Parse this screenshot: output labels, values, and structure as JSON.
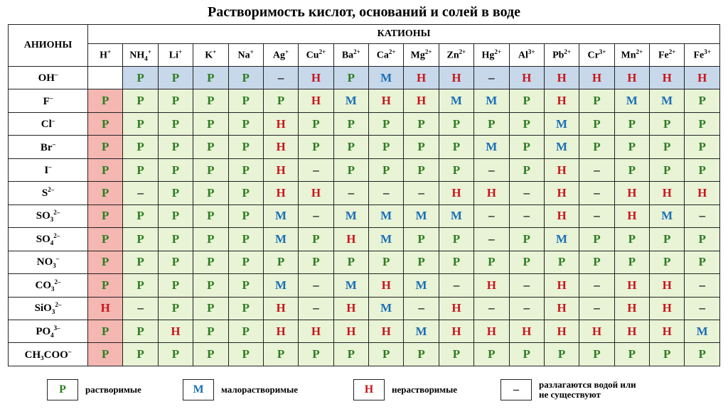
{
  "title": "Растворимость кислот, оснований и солей в воде",
  "header": {
    "anions_label": "АНИОНЫ",
    "cations_label": "КАТИОНЫ"
  },
  "cations": [
    {
      "base": "H",
      "sup": "+"
    },
    {
      "base": "NH",
      "sub": "4",
      "sup": "+"
    },
    {
      "base": "Li",
      "sup": "+"
    },
    {
      "base": "K",
      "sup": "+"
    },
    {
      "base": "Na",
      "sup": "+"
    },
    {
      "base": "Ag",
      "sup": "+"
    },
    {
      "base": "Cu",
      "sup": "2+"
    },
    {
      "base": "Ba",
      "sup": "2+"
    },
    {
      "base": "Ca",
      "sup": "2+"
    },
    {
      "base": "Mg",
      "sup": "2+"
    },
    {
      "base": "Zn",
      "sup": "2+"
    },
    {
      "base": "Hg",
      "sup": "2+"
    },
    {
      "base": "Al",
      "sup": "3+"
    },
    {
      "base": "Pb",
      "sup": "2+"
    },
    {
      "base": "Cr",
      "sup": "3+"
    },
    {
      "base": "Mn",
      "sup": "2+"
    },
    {
      "base": "Fe",
      "sup": "2+"
    },
    {
      "base": "Fe",
      "sup": "3+"
    }
  ],
  "rows": [
    {
      "anion": {
        "base": "OH",
        "sup": "–"
      },
      "values": [
        "",
        "Р",
        "Р",
        "Р",
        "Р",
        "–",
        "Н",
        "Р",
        "М",
        "Н",
        "Н",
        "–",
        "Н",
        "Н",
        "Н",
        "Н",
        "Н",
        "Н"
      ]
    },
    {
      "anion": {
        "base": "F",
        "sup": "–"
      },
      "values": [
        "Р",
        "Р",
        "Р",
        "Р",
        "Р",
        "Р",
        "Н",
        "М",
        "Н",
        "Н",
        "М",
        "М",
        "Р",
        "Н",
        "Р",
        "М",
        "М",
        "Р"
      ]
    },
    {
      "anion": {
        "base": "Cl",
        "sup": "–"
      },
      "values": [
        "Р",
        "Р",
        "Р",
        "Р",
        "Р",
        "Н",
        "Р",
        "Р",
        "Р",
        "Р",
        "Р",
        "Р",
        "Р",
        "М",
        "Р",
        "Р",
        "Р",
        "Р"
      ]
    },
    {
      "anion": {
        "base": "Br",
        "sup": "–"
      },
      "values": [
        "Р",
        "Р",
        "Р",
        "Р",
        "Р",
        "Н",
        "Р",
        "Р",
        "Р",
        "Р",
        "Р",
        "М",
        "Р",
        "М",
        "Р",
        "Р",
        "Р",
        "Р"
      ]
    },
    {
      "anion": {
        "base": "I",
        "sup": "–"
      },
      "values": [
        "Р",
        "Р",
        "Р",
        "Р",
        "Р",
        "Н",
        "–",
        "Р",
        "Р",
        "Р",
        "Р",
        "–",
        "Р",
        "Н",
        "–",
        "Р",
        "Р",
        "Р"
      ]
    },
    {
      "anion": {
        "base": "S",
        "sup": "2–"
      },
      "values": [
        "Р",
        "–",
        "Р",
        "Р",
        "Р",
        "Н",
        "Н",
        "–",
        "–",
        "–",
        "Н",
        "Н",
        "–",
        "Н",
        "–",
        "Н",
        "Н",
        "Н"
      ]
    },
    {
      "anion": {
        "base": "SO",
        "sub": "3",
        "sup": "2–"
      },
      "values": [
        "Р",
        "Р",
        "Р",
        "Р",
        "Р",
        "М",
        "–",
        "М",
        "М",
        "М",
        "М",
        "–",
        "–",
        "Н",
        "–",
        "Н",
        "М",
        "–"
      ]
    },
    {
      "anion": {
        "base": "SO",
        "sub": "4",
        "sup": "2–"
      },
      "values": [
        "Р",
        "Р",
        "Р",
        "Р",
        "Р",
        "М",
        "Р",
        "Н",
        "М",
        "Р",
        "Р",
        "–",
        "Р",
        "М",
        "Р",
        "Р",
        "Р",
        "Р"
      ]
    },
    {
      "anion": {
        "base": "NO",
        "sub": "3",
        "sup": "–"
      },
      "values": [
        "Р",
        "Р",
        "Р",
        "Р",
        "Р",
        "Р",
        "Р",
        "Р",
        "Р",
        "Р",
        "Р",
        "Р",
        "Р",
        "Р",
        "Р",
        "Р",
        "Р",
        "Р"
      ]
    },
    {
      "anion": {
        "base": "CO",
        "sub": "3",
        "sup": "2–"
      },
      "values": [
        "Р",
        "Р",
        "Р",
        "Р",
        "Р",
        "М",
        "–",
        "М",
        "Н",
        "М",
        "–",
        "Н",
        "–",
        "Н",
        "–",
        "Н",
        "Н",
        "–"
      ]
    },
    {
      "anion": {
        "base": "SiO",
        "sub": "3",
        "sup": "2–"
      },
      "values": [
        "Н",
        "–",
        "Р",
        "Р",
        "Р",
        "Н",
        "–",
        "Н",
        "М",
        "–",
        "Н",
        "–",
        "–",
        "Н",
        "–",
        "Н",
        "Н",
        "–"
      ]
    },
    {
      "anion": {
        "base": "PO",
        "sub": "4",
        "sup": "3–"
      },
      "values": [
        "Р",
        "Р",
        "Н",
        "Р",
        "Р",
        "Н",
        "Н",
        "Н",
        "Н",
        "М",
        "Н",
        "Н",
        "Н",
        "Н",
        "Н",
        "Н",
        "Н",
        "М"
      ]
    },
    {
      "anion": {
        "base": "CH₃COO",
        "sup": "–"
      },
      "values": [
        "Р",
        "Р",
        "Р",
        "Р",
        "Р",
        "Р",
        "Р",
        "Р",
        "Р",
        "Р",
        "Р",
        "Р",
        "Р",
        "Р",
        "Р",
        "Р",
        "Р",
        "Р"
      ]
    }
  ],
  "legend": [
    {
      "symbol": "Р",
      "label": "растворимые",
      "color": "#2e7d22"
    },
    {
      "symbol": "М",
      "label": "малорастворимые",
      "color": "#1a6fb5"
    },
    {
      "symbol": "Н",
      "label": "нерастворимые",
      "color": "#c8161d"
    },
    {
      "symbol": "–",
      "label": "разлагаются водой или не существуют",
      "color": "#111111"
    }
  ],
  "colors": {
    "cell_bg": "#e9f3d6",
    "hydroxide_row_bg": "#c7d8ea",
    "acid_column_bg": "#f4b7b2"
  }
}
